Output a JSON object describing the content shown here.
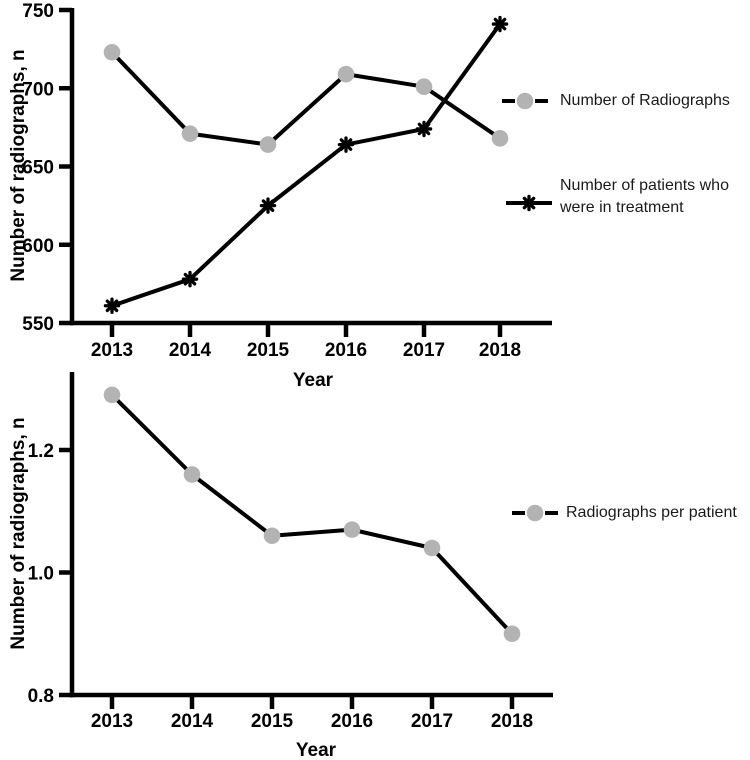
{
  "figure": {
    "background": "#ffffff",
    "line_color": "#000000",
    "text_color": "#000000",
    "gray_marker_color": "#b3b3b3",
    "black_marker_color": "#000000"
  },
  "chart_data": [
    {
      "type": "line",
      "title": "",
      "xlabel": "Year",
      "ylabel": "Number of radiographs, n",
      "categories": [
        "2013",
        "2014",
        "2015",
        "2016",
        "2017",
        "2018"
      ],
      "ylim": [
        550,
        750
      ],
      "yticks": [
        550,
        600,
        650,
        700,
        750
      ],
      "ytick_labels": [
        "550",
        "600",
        "650",
        "700",
        "750"
      ],
      "grid": false,
      "legend_position": "right",
      "series": [
        {
          "name": "Number of Radiographs",
          "marker": "circle",
          "marker_color": "#b3b3b3",
          "line_color": "#000000",
          "values": [
            723,
            671,
            664,
            709,
            701,
            668
          ]
        },
        {
          "name": "Number of patients who were in treatment",
          "marker": "star",
          "marker_color": "#000000",
          "line_color": "#000000",
          "values": [
            561,
            578,
            625,
            664,
            674,
            741
          ]
        }
      ]
    },
    {
      "type": "line",
      "title": "",
      "xlabel": "Year",
      "ylabel": "Number of radiographs, n",
      "categories": [
        "2013",
        "2014",
        "2015",
        "2016",
        "2017",
        "2018"
      ],
      "ylim": [
        0.8,
        1.33
      ],
      "yticks": [
        0.8,
        1.0,
        1.2
      ],
      "ytick_labels": [
        "0.8",
        "1.0",
        "1.2"
      ],
      "grid": false,
      "legend_position": "right",
      "series": [
        {
          "name": "Radiographs per patient",
          "marker": "circle",
          "marker_color": "#b3b3b3",
          "line_color": "#000000",
          "values": [
            1.29,
            1.16,
            1.06,
            1.07,
            1.04,
            0.9
          ]
        }
      ]
    }
  ]
}
